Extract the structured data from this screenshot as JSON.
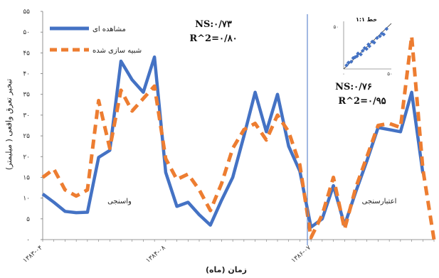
{
  "chart_data": {
    "type": "line",
    "ylabel": "تبخیر تعرق واقعی ( میلیمتر)",
    "xlabel": "زمان (ماه)",
    "ylim": [
      0,
      55
    ],
    "y_ticks": [
      "۰",
      "۵",
      "۱۰",
      "۱۵",
      "۲۰",
      "۲۵",
      "۳۰",
      "۳۵",
      "۴۰",
      "۴۵",
      "۵۰",
      "۵۵"
    ],
    "x_tick_labels": [
      "۱۳۸۳-۰۴",
      "۱۳۸۴-۰۸",
      "۱۳۸۶-۰۷"
    ],
    "x_tick_index": [
      0,
      11,
      24
    ],
    "x": [
      0,
      1,
      2,
      3,
      4,
      5,
      6,
      7,
      8,
      9,
      10,
      11,
      12,
      13,
      14,
      15,
      16,
      17,
      18,
      19,
      20,
      21,
      22,
      23,
      24,
      25,
      26,
      27,
      28,
      29,
      30,
      31,
      32,
      33,
      34,
      35
    ],
    "series": [
      {
        "name": "مشاهده ای",
        "color": "#4472C4",
        "style": "solid",
        "values": [
          11,
          9,
          6.8,
          6.5,
          6.6,
          19.8,
          21.5,
          43,
          38.5,
          35.5,
          44,
          16.2,
          8,
          9,
          6,
          3.5,
          9.5,
          15,
          25,
          35.5,
          26,
          35,
          22.5,
          16.5,
          3,
          5,
          13,
          3.5,
          11.5,
          19,
          27,
          26.5,
          26,
          35.5,
          16,
          null
        ]
      },
      {
        "name": "شبیه سازی شده",
        "color": "#ED7D31",
        "style": "dashed",
        "values": [
          15,
          17,
          12,
          10.5,
          12,
          33.5,
          22,
          36,
          31,
          34,
          37,
          19.5,
          14.5,
          15.8,
          12,
          7,
          13.5,
          22,
          26.5,
          28,
          24,
          30,
          26,
          18,
          0.5,
          6,
          15,
          2.5,
          12.5,
          20,
          27.5,
          28,
          27,
          49,
          17,
          0
        ]
      }
    ],
    "annotations": [
      {
        "text": "NS:۰/۷۳",
        "region": "top-left"
      },
      {
        "text": "R^2=۰/۸۰",
        "region": "top-left"
      },
      {
        "text": "NS:۰/۷۶",
        "region": "top-right"
      },
      {
        "text": "R^2=۰/۹۵",
        "region": "top-right"
      },
      {
        "text": "واسنجی",
        "region": "calibration"
      },
      {
        "text": "اعتبارسنجی",
        "region": "validation"
      }
    ],
    "split_index": 24,
    "legend_position": "top-left",
    "inset": {
      "type": "scatter",
      "title": "خط ۱:۱",
      "tick_labels": [
        "۰",
        "۵۰"
      ],
      "y_tick_label": "۵۰",
      "points": [
        [
          3,
          4
        ],
        [
          5,
          7
        ],
        [
          8,
          8
        ],
        [
          10,
          12
        ],
        [
          12,
          13
        ],
        [
          14,
          14
        ],
        [
          15,
          17
        ],
        [
          18,
          16
        ],
        [
          20,
          20
        ],
        [
          22,
          23
        ],
        [
          24,
          22
        ],
        [
          26,
          27
        ],
        [
          27,
          25
        ],
        [
          30,
          30
        ],
        [
          32,
          29
        ],
        [
          35,
          34
        ],
        [
          38,
          36
        ],
        [
          40,
          39
        ],
        [
          42,
          38
        ],
        [
          45,
          44
        ]
      ]
    }
  }
}
